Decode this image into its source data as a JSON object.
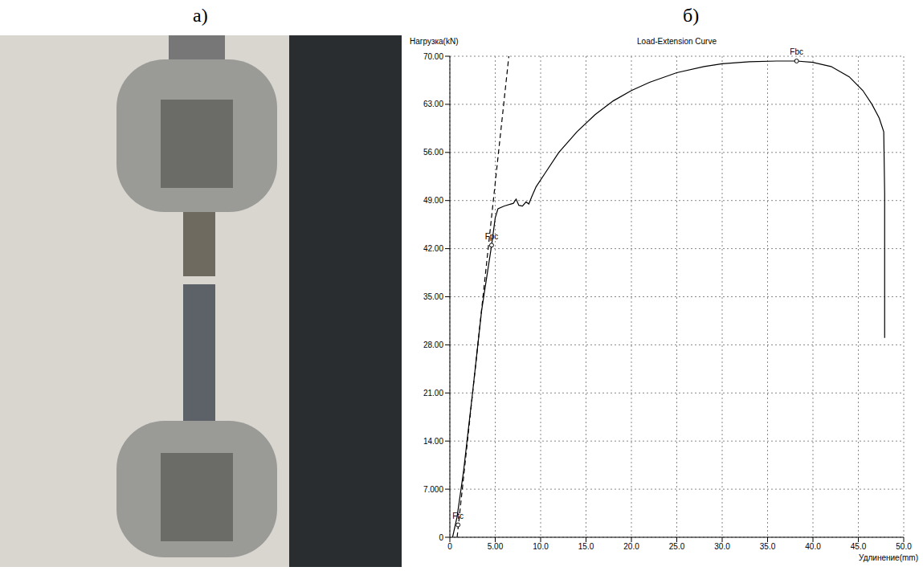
{
  "panel_labels": [
    "а)",
    "б)"
  ],
  "chart_data": {
    "type": "line",
    "title": "Load-Extension Curve",
    "y_label": "Нагрузка(kN)",
    "x_label": "Удлинение(mm)",
    "xlim": [
      0,
      50
    ],
    "ylim": [
      0,
      70
    ],
    "xticks": [
      0,
      {
        "value": 5,
        "label": "5.00"
      },
      {
        "value": 10,
        "label": "10.0"
      },
      {
        "value": 15,
        "label": "15.0"
      },
      {
        "value": 20,
        "label": "20.0"
      },
      {
        "value": 25,
        "label": "25.0"
      },
      {
        "value": 30,
        "label": "30.0"
      },
      {
        "value": 35,
        "label": "35.0"
      },
      {
        "value": 40,
        "label": "40.0"
      },
      {
        "value": 45,
        "label": "45.0"
      },
      {
        "value": 50,
        "label": "50.0"
      }
    ],
    "yticks": [
      0,
      {
        "value": 7,
        "label": "7.000"
      },
      {
        "value": 14,
        "label": "14.00"
      },
      {
        "value": 21,
        "label": "21.00"
      },
      {
        "value": 28,
        "label": "28.00"
      },
      {
        "value": 35,
        "label": "35.00"
      },
      {
        "value": 42,
        "label": "42.00"
      },
      {
        "value": 49,
        "label": "49.00"
      },
      {
        "value": 56,
        "label": "56.00"
      },
      {
        "value": 63,
        "label": "63.00"
      },
      {
        "value": 70,
        "label": "70.00"
      }
    ],
    "grid": true,
    "series": [
      {
        "color": "#000000",
        "line_style": "solid",
        "x": [
          0.3,
          0.8,
          1.5,
          2.5,
          3.5,
          4.6,
          5.0,
          5.3,
          6.0,
          7.0,
          7.3,
          7.6,
          8.0,
          8.4,
          8.7,
          9.0,
          9.5,
          10.5,
          12,
          14,
          16,
          18,
          20,
          22,
          25,
          28,
          30,
          33,
          36,
          38.2,
          40,
          42,
          44,
          45.5,
          46.5,
          47.3,
          47.8,
          47.9,
          47.9,
          47.9
        ],
        "values": [
          0,
          3,
          9.5,
          21,
          33,
          42.5,
          46.5,
          47.8,
          48.2,
          48.6,
          49.2,
          48.3,
          48.2,
          48.8,
          48.5,
          49.5,
          51,
          53,
          56,
          59,
          61.5,
          63.5,
          65,
          66.2,
          67.6,
          68.5,
          68.9,
          69.2,
          69.3,
          69.3,
          69.1,
          68.5,
          67,
          65,
          63,
          61,
          59,
          50,
          40,
          29
        ]
      },
      {
        "color": "#000000",
        "line_style": "dashed",
        "x": [
          0.8,
          6.5
        ],
        "values": [
          0,
          70
        ]
      }
    ],
    "annotations": [
      {
        "text": "Fbc",
        "x": 38.2,
        "y": 69.3,
        "marker": "circle"
      },
      {
        "text": "Fpc",
        "x": 4.6,
        "y": 42.5,
        "marker": "circle"
      },
      {
        "text": "Ftc",
        "x": 0.9,
        "y": 1.8,
        "marker": "circle"
      }
    ]
  }
}
